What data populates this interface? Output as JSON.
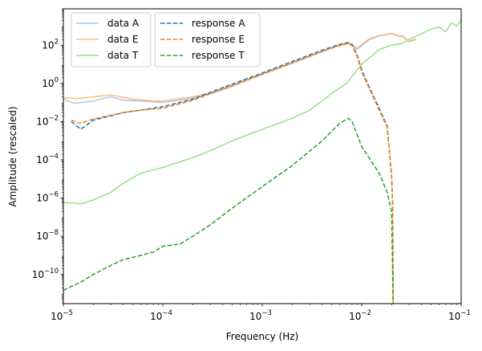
{
  "chart_data": {
    "type": "line",
    "xlabel": "Frequency (Hz)",
    "ylabel": "Amplitude (rescaled)",
    "xscale": "log",
    "yscale": "log",
    "xlim": [
      1e-05,
      0.1
    ],
    "ylim": [
      3e-12,
      8000
    ],
    "grid": false,
    "legend_placement": "top-left",
    "x_ticks": [
      {
        "value": 1e-05,
        "base": "10",
        "exp": "−5"
      },
      {
        "value": 0.0001,
        "base": "10",
        "exp": "−4"
      },
      {
        "value": 0.001,
        "base": "10",
        "exp": "−3"
      },
      {
        "value": 0.01,
        "base": "10",
        "exp": "−2"
      },
      {
        "value": 0.1,
        "base": "10",
        "exp": "−1"
      }
    ],
    "y_ticks": [
      {
        "value": 1e-10,
        "base": "10",
        "exp": "−10"
      },
      {
        "value": 1e-08,
        "base": "10",
        "exp": "−8"
      },
      {
        "value": 1e-06,
        "base": "10",
        "exp": "−6"
      },
      {
        "value": 0.0001,
        "base": "10",
        "exp": "−4"
      },
      {
        "value": 0.01,
        "base": "10",
        "exp": "−2"
      },
      {
        "value": 1,
        "base": "10",
        "exp": "0"
      },
      {
        "value": 100,
        "base": "10",
        "exp": "2"
      }
    ],
    "series": [
      {
        "name": "data A",
        "color": "#aec7e8",
        "style": "solid",
        "width": 1.5,
        "points": [
          [
            1e-05,
            0.15
          ],
          [
            1.3e-05,
            0.09
          ],
          [
            2e-05,
            0.12
          ],
          [
            3e-05,
            0.2
          ],
          [
            4e-05,
            0.13
          ],
          [
            6e-05,
            0.12
          ],
          [
            0.0001,
            0.1
          ],
          [
            0.0002,
            0.17
          ],
          [
            0.0003,
            0.28
          ],
          [
            0.0005,
            0.7
          ],
          [
            0.001,
            3
          ],
          [
            0.002,
            11
          ],
          [
            0.004,
            45
          ],
          [
            0.006,
            100
          ],
          [
            0.0072,
            130
          ],
          [
            0.008,
            100
          ],
          [
            0.009,
            60
          ],
          [
            0.012,
            200
          ],
          [
            0.015,
            300
          ],
          [
            0.02,
            400
          ],
          [
            0.023,
            300
          ],
          [
            0.026,
            280
          ],
          [
            0.03,
            150
          ],
          [
            0.035,
            200
          ]
        ]
      },
      {
        "name": "data E",
        "color": "#ffbb78",
        "style": "solid",
        "width": 1.5,
        "points": [
          [
            1e-05,
            0.18
          ],
          [
            1.4e-05,
            0.16
          ],
          [
            2e-05,
            0.2
          ],
          [
            3e-05,
            0.25
          ],
          [
            5e-05,
            0.15
          ],
          [
            8e-05,
            0.12
          ],
          [
            0.0001,
            0.12
          ],
          [
            0.0002,
            0.2
          ],
          [
            0.0003,
            0.32
          ],
          [
            0.0005,
            0.8
          ],
          [
            0.001,
            3.2
          ],
          [
            0.002,
            12
          ],
          [
            0.004,
            48
          ],
          [
            0.006,
            105
          ],
          [
            0.0072,
            135
          ],
          [
            0.008,
            110
          ],
          [
            0.009,
            70
          ],
          [
            0.012,
            220
          ],
          [
            0.015,
            320
          ],
          [
            0.02,
            420
          ],
          [
            0.023,
            320
          ],
          [
            0.026,
            300
          ],
          [
            0.03,
            160
          ],
          [
            0.035,
            210
          ]
        ]
      },
      {
        "name": "data T",
        "color": "#98df8a",
        "style": "solid",
        "width": 1.5,
        "points": [
          [
            1e-05,
            6e-07
          ],
          [
            1.5e-05,
            5e-07
          ],
          [
            2e-05,
            8e-07
          ],
          [
            3e-05,
            2e-06
          ],
          [
            4e-05,
            6e-06
          ],
          [
            6e-05,
            2e-05
          ],
          [
            0.0001,
            4e-05
          ],
          [
            0.0002,
            0.00013
          ],
          [
            0.0003,
            0.0003
          ],
          [
            0.0005,
            0.001
          ],
          [
            0.001,
            0.004
          ],
          [
            0.002,
            0.015
          ],
          [
            0.003,
            0.04
          ],
          [
            0.005,
            0.3
          ],
          [
            0.007,
            1
          ],
          [
            0.01,
            10
          ],
          [
            0.015,
            60
          ],
          [
            0.02,
            100
          ],
          [
            0.025,
            120
          ],
          [
            0.03,
            200
          ],
          [
            0.04,
            400
          ],
          [
            0.05,
            700
          ],
          [
            0.06,
            900
          ],
          [
            0.07,
            500
          ],
          [
            0.08,
            1500
          ],
          [
            0.09,
            1000
          ],
          [
            0.1,
            2000
          ]
        ]
      },
      {
        "name": "response A",
        "color": "#1f77b4",
        "style": "dashed",
        "width": 1.5,
        "points": [
          [
            1.2e-05,
            0.01
          ],
          [
            1.5e-05,
            0.004
          ],
          [
            2e-05,
            0.012
          ],
          [
            3e-05,
            0.02
          ],
          [
            4e-05,
            0.03
          ],
          [
            6e-05,
            0.04
          ],
          [
            0.0001,
            0.06
          ],
          [
            0.0002,
            0.15
          ],
          [
            0.0004,
            0.6
          ],
          [
            0.001,
            3.5
          ],
          [
            0.002,
            14
          ],
          [
            0.004,
            55
          ],
          [
            0.006,
            110
          ],
          [
            0.0073,
            140
          ],
          [
            0.008,
            110
          ],
          [
            0.009,
            30
          ],
          [
            0.01,
            5
          ],
          [
            0.012,
            0.6
          ],
          [
            0.015,
            0.05
          ],
          [
            0.018,
            0.006
          ],
          [
            0.02,
            1.5e-05
          ],
          [
            0.0205,
            3e-07
          ],
          [
            0.0207,
            3e-12
          ]
        ]
      },
      {
        "name": "response E",
        "color": "#ff7f0e",
        "style": "dashed",
        "width": 1.5,
        "points": [
          [
            1.2e-05,
            0.012
          ],
          [
            1.5e-05,
            0.008
          ],
          [
            2e-05,
            0.014
          ],
          [
            3e-05,
            0.022
          ],
          [
            4e-05,
            0.03
          ],
          [
            6e-05,
            0.04
          ],
          [
            0.0001,
            0.05
          ],
          [
            0.0002,
            0.13
          ],
          [
            0.0004,
            0.5
          ],
          [
            0.001,
            3
          ],
          [
            0.002,
            12
          ],
          [
            0.004,
            48
          ],
          [
            0.006,
            95
          ],
          [
            0.0073,
            120
          ],
          [
            0.008,
            95
          ],
          [
            0.009,
            25
          ],
          [
            0.01,
            4
          ],
          [
            0.012,
            0.5
          ],
          [
            0.015,
            0.04
          ],
          [
            0.018,
            0.005
          ],
          [
            0.02,
            1.2e-05
          ],
          [
            0.0205,
            3e-07
          ],
          [
            0.0207,
            3e-12
          ]
        ]
      },
      {
        "name": "response T",
        "color": "#2ca02c",
        "style": "dashed",
        "width": 1.5,
        "points": [
          [
            1e-05,
            1.5e-11
          ],
          [
            1.5e-05,
            4e-11
          ],
          [
            2e-05,
            1e-10
          ],
          [
            3e-05,
            3e-10
          ],
          [
            4e-05,
            6e-10
          ],
          [
            6e-05,
            1e-09
          ],
          [
            8e-05,
            1.5e-09
          ],
          [
            0.0001,
            3e-09
          ],
          [
            0.00015,
            4e-09
          ],
          [
            0.0002,
            1e-08
          ],
          [
            0.0003,
            4e-08
          ],
          [
            0.0005,
            3e-07
          ],
          [
            0.001,
            4e-06
          ],
          [
            0.002,
            5e-05
          ],
          [
            0.004,
            0.001
          ],
          [
            0.006,
            0.008
          ],
          [
            0.0073,
            0.015
          ],
          [
            0.008,
            0.01
          ],
          [
            0.01,
            0.0005
          ],
          [
            0.015,
            2e-05
          ],
          [
            0.018,
            2e-06
          ],
          [
            0.02,
            2e-07
          ],
          [
            0.0207,
            3e-12
          ]
        ]
      }
    ]
  }
}
